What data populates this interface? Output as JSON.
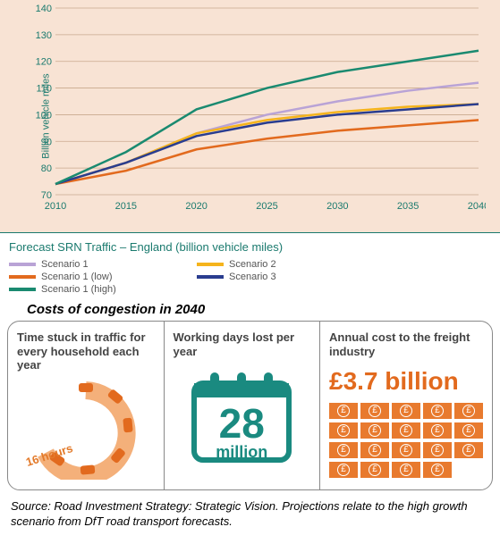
{
  "chart": {
    "type": "line",
    "background_color": "#f8e3d4",
    "y_axis": {
      "label": "Billion vehicle miles",
      "label_color": "#1a7a6e",
      "label_fontsize": 11,
      "min": 70,
      "max": 140,
      "tick_step": 10,
      "ticks": [
        70,
        80,
        90,
        100,
        110,
        120,
        130,
        140
      ],
      "tick_color": "#1a7a6e",
      "tick_fontsize": 11
    },
    "x_axis": {
      "min": 2010,
      "max": 2040,
      "tick_step": 5,
      "ticks": [
        2010,
        2015,
        2020,
        2025,
        2030,
        2035,
        2040
      ],
      "tick_color": "#1a7a6e",
      "tick_fontsize": 11
    },
    "grid_color": "#c9a98e",
    "line_width": 2.5,
    "series": [
      {
        "name": "Scenario 1",
        "color": "#b9a3d6",
        "data": [
          [
            2010,
            74
          ],
          [
            2015,
            82
          ],
          [
            2020,
            93
          ],
          [
            2025,
            100
          ],
          [
            2030,
            105
          ],
          [
            2035,
            109
          ],
          [
            2040,
            112
          ]
        ]
      },
      {
        "name": "Scenario 2",
        "color": "#f5b41c",
        "data": [
          [
            2010,
            74
          ],
          [
            2015,
            82
          ],
          [
            2020,
            93
          ],
          [
            2025,
            98
          ],
          [
            2030,
            101
          ],
          [
            2035,
            103
          ],
          [
            2040,
            104
          ]
        ]
      },
      {
        "name": "Scenario 1 (low)",
        "color": "#e26a1e",
        "data": [
          [
            2010,
            74
          ],
          [
            2015,
            79
          ],
          [
            2020,
            87
          ],
          [
            2025,
            91
          ],
          [
            2030,
            94
          ],
          [
            2035,
            96
          ],
          [
            2040,
            98
          ]
        ]
      },
      {
        "name": "Scenario 3",
        "color": "#2a3d8f",
        "data": [
          [
            2010,
            74
          ],
          [
            2015,
            82
          ],
          [
            2020,
            92
          ],
          [
            2025,
            97
          ],
          [
            2030,
            100
          ],
          [
            2035,
            102
          ],
          [
            2040,
            104
          ]
        ]
      },
      {
        "name": "Scenario 1 (high)",
        "color": "#1a8a70",
        "data": [
          [
            2010,
            74
          ],
          [
            2015,
            86
          ],
          [
            2020,
            102
          ],
          [
            2025,
            110
          ],
          [
            2030,
            116
          ],
          [
            2035,
            120
          ],
          [
            2040,
            124
          ]
        ]
      }
    ],
    "legend": {
      "title": "Forecast SRN Traffic – England (billion vehicle miles)",
      "title_color": "#1a7a6e",
      "title_fontsize": 13,
      "items": [
        {
          "label": "Scenario 1",
          "color": "#b9a3d6"
        },
        {
          "label": "Scenario 2",
          "color": "#f5b41c"
        },
        {
          "label": "Scenario 1 (low)",
          "color": "#e26a1e"
        },
        {
          "label": "Scenario 3",
          "color": "#2a3d8f"
        },
        {
          "label": "Scenario 1 (high)",
          "color": "#1a8a70"
        }
      ]
    }
  },
  "congestion": {
    "title": "Costs of congestion in 2040",
    "title_fontsize": 15,
    "col1": {
      "heading": "Time stuck in traffic for every household each year",
      "value": "16 hours",
      "car_color": "#e26a1e",
      "ring_color": "#f4b07a"
    },
    "col2": {
      "heading": "Working days lost per year",
      "number": "28",
      "unit": "million",
      "color": "#1a8a80"
    },
    "col3": {
      "heading": "Annual cost to the freight industry",
      "value": "£3.7 billion",
      "value_color": "#e26a1e",
      "note_color": "#e87a2e",
      "note_count": 19
    }
  },
  "source": "Source: Road Investment Strategy: Strategic Vision. Projections relate to the high growth scenario from DfT road transport forecasts."
}
